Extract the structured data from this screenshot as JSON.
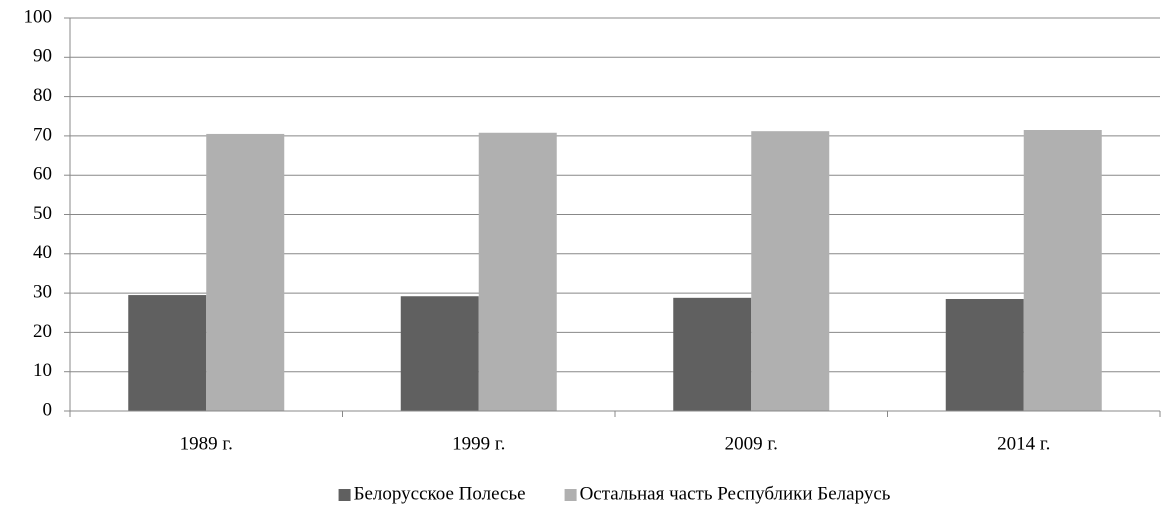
{
  "chart_data": {
    "type": "bar",
    "categories": [
      "1989 г.",
      "1999 г.",
      "2009 г.",
      "2014 г."
    ],
    "series": [
      {
        "name": "Белорусское Полесье",
        "color": "#606060",
        "values": [
          29.5,
          29.2,
          28.8,
          28.5
        ]
      },
      {
        "name": "Остальная часть Республики Беларусь",
        "color": "#b0b0b0",
        "values": [
          70.5,
          70.8,
          71.2,
          71.5
        ]
      }
    ],
    "ylim": [
      0,
      100
    ],
    "yticks": [
      0,
      10,
      20,
      30,
      40,
      50,
      60,
      70,
      80,
      90,
      100
    ],
    "grid": true,
    "legend": "bottom"
  }
}
